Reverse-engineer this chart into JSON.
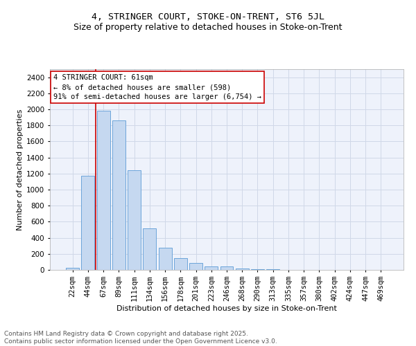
{
  "title": "4, STRINGER COURT, STOKE-ON-TRENT, ST6 5JL",
  "subtitle": "Size of property relative to detached houses in Stoke-on-Trent",
  "xlabel": "Distribution of detached houses by size in Stoke-on-Trent",
  "ylabel": "Number of detached properties",
  "categories": [
    "22sqm",
    "44sqm",
    "67sqm",
    "89sqm",
    "111sqm",
    "134sqm",
    "156sqm",
    "178sqm",
    "201sqm",
    "223sqm",
    "246sqm",
    "268sqm",
    "290sqm",
    "313sqm",
    "335sqm",
    "357sqm",
    "380sqm",
    "402sqm",
    "424sqm",
    "447sqm",
    "469sqm"
  ],
  "values": [
    25,
    1170,
    1980,
    1860,
    1245,
    520,
    275,
    150,
    90,
    42,
    40,
    18,
    12,
    6,
    4,
    3,
    2,
    2,
    1,
    1,
    1
  ],
  "bar_color": "#c5d8f0",
  "bar_edge_color": "#5b9bd5",
  "grid_color": "#d0d8e8",
  "background_color": "#eef2fb",
  "vline_color": "#cc0000",
  "vline_x": 1.5,
  "annotation_text": "4 STRINGER COURT: 61sqm\n← 8% of detached houses are smaller (598)\n91% of semi-detached houses are larger (6,754) →",
  "annotation_box_color": "#ffffff",
  "annotation_box_edge": "#cc0000",
  "ylim": [
    0,
    2500
  ],
  "yticks": [
    0,
    200,
    400,
    600,
    800,
    1000,
    1200,
    1400,
    1600,
    1800,
    2000,
    2200,
    2400
  ],
  "footer_line1": "Contains HM Land Registry data © Crown copyright and database right 2025.",
  "footer_line2": "Contains public sector information licensed under the Open Government Licence v3.0.",
  "title_fontsize": 9.5,
  "subtitle_fontsize": 9,
  "axis_label_fontsize": 8,
  "tick_fontsize": 7.5,
  "annotation_fontsize": 7.5,
  "footer_fontsize": 6.5
}
